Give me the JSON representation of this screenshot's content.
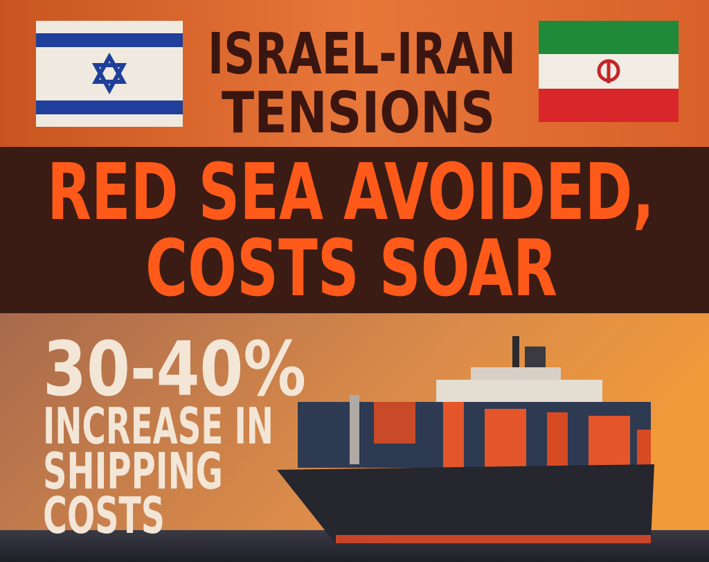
{
  "header": {
    "title": [
      "ISRAEL-IRAN",
      "TENSIONS"
    ]
  },
  "headline": [
    "RED SEA AVOIDED,",
    "COSTS SOAR"
  ],
  "stat": {
    "figure": "30-40%",
    "text": [
      "INCREASE IN",
      "SHIPPING",
      "COSTS"
    ]
  }
}
